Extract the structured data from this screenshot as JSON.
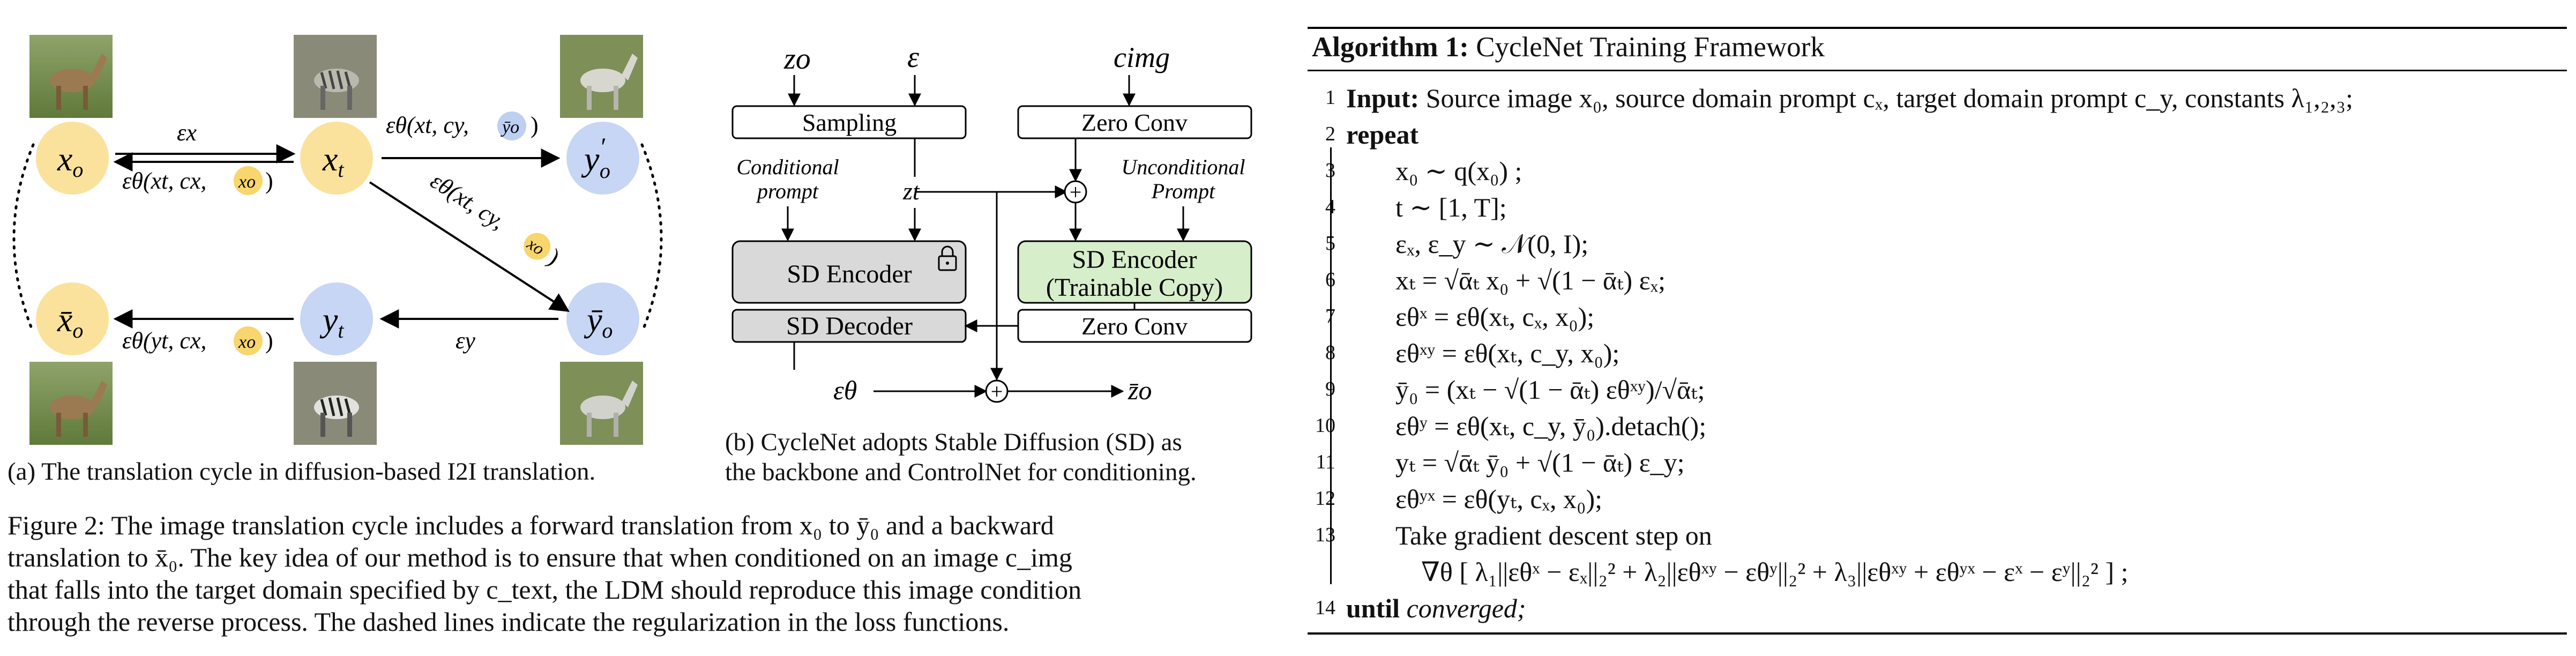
{
  "panel_a": {
    "nodes": {
      "x0": "x",
      "x0_sub": "o",
      "xt": "x",
      "xt_sub": "t",
      "y0p": "y",
      "y0p_sup": "′",
      "y0p_sub": "o",
      "x0bar": "x̄",
      "x0bar_sub": "o",
      "yt": "y",
      "yt_sub": "t",
      "y0bar": "ȳ",
      "y0bar_sub": "o"
    },
    "labels": {
      "eps_x": "εx",
      "eps_theta_xt_cx": "εθ(xt, cx,",
      "xo_badge": "xo",
      "close_paren": ")",
      "eps_theta_xt_cy": "εθ(xt, cy,",
      "y0_badge": "ȳo",
      "eps_theta_diag": "εθ(xt, cy,",
      "diag_badge": "xo",
      "eps_y": "εy",
      "eps_theta_yt": "εθ(yt, cx,",
      "yt_badge": "xo"
    },
    "caption": "(a) The translation cycle in diffusion-based I2I translation."
  },
  "panel_b": {
    "inputs": {
      "z0": "zo",
      "eps": "ε",
      "cimg": "cimg"
    },
    "boxes": {
      "sampling": "Sampling",
      "zero_conv_top": "Zero Conv",
      "sd_encoder": "SD Encoder",
      "trainable_line1": "SD Encoder",
      "trainable_line2": "(Trainable Copy)",
      "sd_decoder": "SD Decoder",
      "zero_conv_bottom": "Zero Conv"
    },
    "labels": {
      "cond_line1": "Conditional",
      "cond_line2": "prompt",
      "uncond_line1": "Unconditional",
      "uncond_line2": "Prompt",
      "zt": "zt",
      "eps_theta": "εθ",
      "z0bar": "z̄o",
      "plus": "+"
    },
    "caption_line1": "(b) CycleNet adopts Stable Diffusion (SD) as",
    "caption_line2": "the backbone and ControlNet for conditioning."
  },
  "figure_caption": {
    "line1": "Figure 2: The image translation cycle includes a forward translation from x₀ to ȳ₀ and a backward",
    "line2": "translation to x̄₀. The key idea of our method is to ensure that when conditioned on an image c_img",
    "line3": "that falls into the target domain specified by c_text, the LDM should reproduce this image condition",
    "line4": "through the reverse process. The dashed lines indicate the regularization in the loss functions."
  },
  "algorithm": {
    "title_bold": "Algorithm 1:",
    "title_rest": " CycleNet Training Framework",
    "lines": [
      {
        "num": "1",
        "bold": "Input:",
        "text": " Source image x₀, source domain prompt cₓ, target domain prompt c_y, constants λ₁,₂,₃;"
      },
      {
        "num": "2",
        "bold": "repeat",
        "text": ""
      },
      {
        "num": "3",
        "bold": "",
        "text": "x₀ ∼ q(x₀) ;"
      },
      {
        "num": "4",
        "bold": "",
        "text": "t ∼ [1, T];"
      },
      {
        "num": "5",
        "bold": "",
        "text": "εₓ, ε_y ∼ 𝒩(0, I);"
      },
      {
        "num": "6",
        "bold": "",
        "text": "xₜ = √ᾱₜ x₀ + √(1 − ᾱₜ) εₓ;"
      },
      {
        "num": "7",
        "bold": "",
        "text": "εθˣ = εθ(xₜ, cₓ, x₀);"
      },
      {
        "num": "8",
        "bold": "",
        "text": "εθˣʸ = εθ(xₜ, c_y, x₀);"
      },
      {
        "num": "9",
        "bold": "",
        "text": "ȳ₀ = (xₜ − √(1 − ᾱₜ) εθˣʸ)/√ᾱₜ;"
      },
      {
        "num": "10",
        "bold": "",
        "text": "εθʸ = εθ(xₜ, c_y, ȳ₀).detach();"
      },
      {
        "num": "11",
        "bold": "",
        "text": "yₜ = √ᾱₜ ȳ₀ + √(1 − ᾱₜ) ε_y;"
      },
      {
        "num": "12",
        "bold": "",
        "text": "εθʸˣ = εθ(yₜ, cₓ, x₀);"
      },
      {
        "num": "13",
        "bold": "",
        "text": "Take gradient descent step on"
      },
      {
        "num": "",
        "bold": "",
        "text": "∇θ [ λ₁||εθˣ − εₓ||₂² + λ₂||εθˣʸ − εθʸ||₂² + λ₃||εθˣʸ + εθʸˣ − εˣ − εʸ||₂² ] ;"
      },
      {
        "num": "14",
        "bold": "until",
        "text": " converged;"
      }
    ]
  },
  "colors": {
    "node_yellow": "#fbe29c",
    "node_blue": "#c8d6f5",
    "badge_yellow": "#f7d66e",
    "badge_blue": "#bdd0f2",
    "sd_gray": "#d9d9d9",
    "trainable_green": "#d7eecb"
  },
  "icons": {
    "lock": "lock-icon"
  }
}
